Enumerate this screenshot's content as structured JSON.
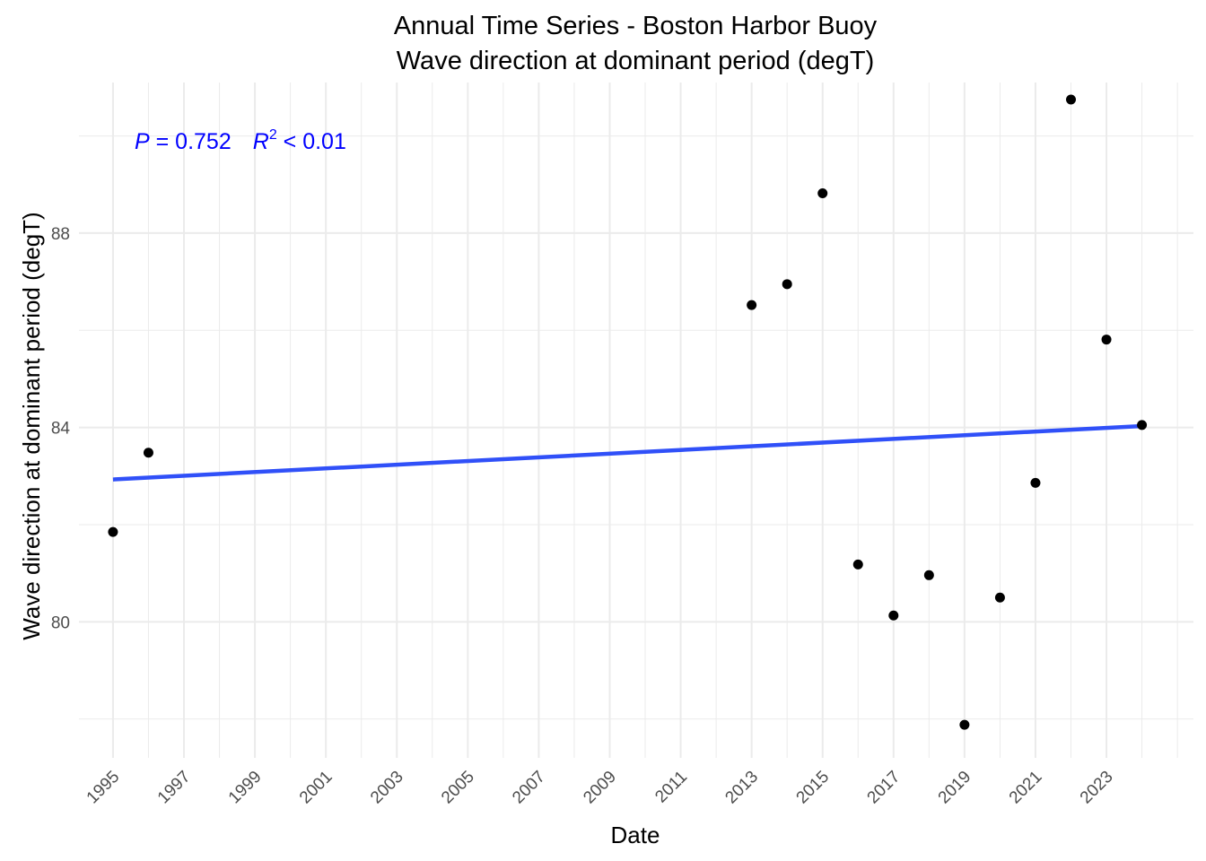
{
  "chart_data": {
    "type": "scatter",
    "title": "Annual Time Series - Boston Harbor Buoy",
    "subtitle": "Wave direction at dominant period (degT)",
    "xlabel": "Date",
    "ylabel": "Wave direction at dominant period (degT)",
    "xlim": [
      "1994-01-16",
      "2025-06-15"
    ],
    "ylim": [
      77.2,
      91.1
    ],
    "x_ticks": [
      "1995",
      "1997",
      "1999",
      "2001",
      "2003",
      "2005",
      "2007",
      "2009",
      "2011",
      "2013",
      "2015",
      "2017",
      "2019",
      "2021",
      "2023"
    ],
    "y_ticks": [
      80,
      84,
      88
    ],
    "grid": true,
    "series": [
      {
        "points": [
          {
            "x": "1995-01-01",
            "y": 81.85
          },
          {
            "x": "1996-01-01",
            "y": 83.48
          },
          {
            "x": "2013-01-01",
            "y": 86.52
          },
          {
            "x": "2014-01-01",
            "y": 86.95
          },
          {
            "x": "2015-01-01",
            "y": 88.82
          },
          {
            "x": "2016-01-01",
            "y": 81.18
          },
          {
            "x": "2017-01-01",
            "y": 80.13
          },
          {
            "x": "2018-01-01",
            "y": 80.96
          },
          {
            "x": "2019-01-01",
            "y": 77.88
          },
          {
            "x": "2020-01-01",
            "y": 80.5
          },
          {
            "x": "2021-01-01",
            "y": 82.86
          },
          {
            "x": "2022-01-01",
            "y": 90.75
          },
          {
            "x": "2023-01-01",
            "y": 85.81
          },
          {
            "x": "2024-01-01",
            "y": 84.05
          }
        ],
        "color": "#000000"
      }
    ],
    "trend_line": {
      "color": "#3050F8",
      "start": {
        "x": "1995-01-01",
        "y": 82.93
      },
      "end": {
        "x": "2024-01-01",
        "y": 84.03
      }
    },
    "annotation": {
      "p_label": "P",
      "p_value": " = 0.752",
      "r_label": "R",
      "r_superscript": "2",
      "r_value": " < 0.01",
      "color": "#0000FF"
    }
  }
}
